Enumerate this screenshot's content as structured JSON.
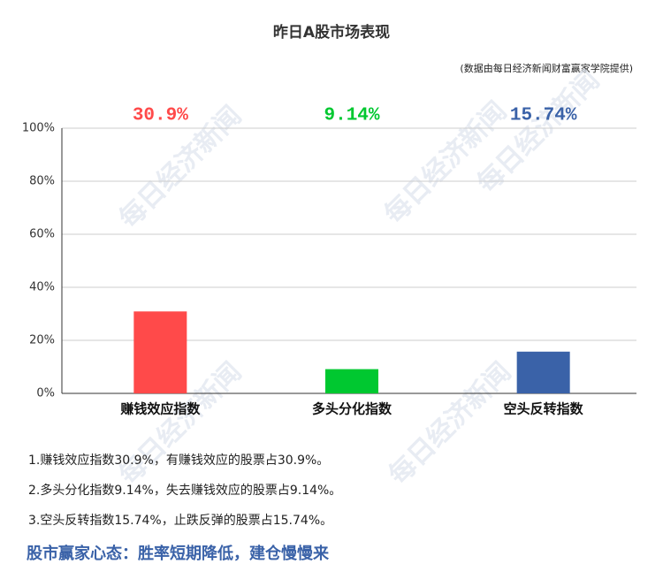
{
  "chart_data": {
    "type": "bar",
    "title": "昨日A股市场表现",
    "subtitle": "(数据由每日经济新闻财富赢家学院提供)",
    "watermark": "每日经济新闻",
    "categories": [
      "赚钱效应指数",
      "多头分化指数",
      "空头反转指数"
    ],
    "values": [
      30.9,
      9.14,
      15.74
    ],
    "value_labels": [
      "30.9%",
      "9.14%",
      "15.74%"
    ],
    "colors": [
      "#ff4a4a",
      "#00c830",
      "#3a62a8"
    ],
    "ylim": [
      0,
      100
    ],
    "yticks": [
      {
        "value": 0,
        "label": "0%"
      },
      {
        "value": 20,
        "label": "20%"
      },
      {
        "value": 40,
        "label": "40%"
      },
      {
        "value": 60,
        "label": "60%"
      },
      {
        "value": 80,
        "label": "80%"
      },
      {
        "value": 100,
        "label": "100%"
      }
    ],
    "grid": true,
    "notes": [
      "1.赚钱效应指数30.9%，有赚钱效应的股票占30.9%。",
      "2.多头分化指数9.14%，失去赚钱效应的股票占9.14%。",
      "3.空头反转指数15.74%，止跌反弹的股票占15.74%。"
    ],
    "headline": "股市赢家心态：胜率短期降低，建仓慢慢来"
  }
}
